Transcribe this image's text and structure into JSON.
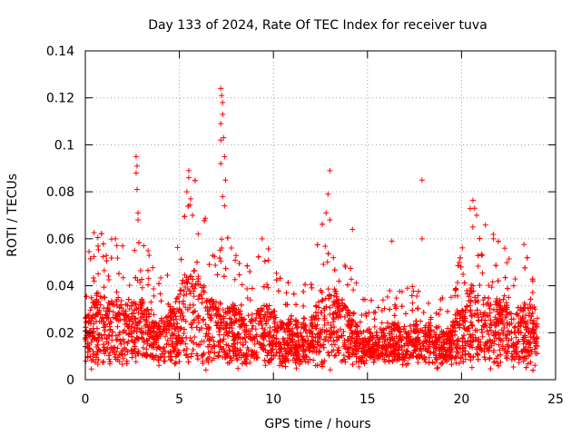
{
  "chart_data": {
    "type": "scatter",
    "title": "Day 133 of 2024, Rate Of TEC Index for receiver tuva",
    "xlabel": "GPS time / hours",
    "ylabel": "ROTI / TECUs",
    "xlim": [
      0,
      25
    ],
    "ylim": [
      0,
      0.14
    ],
    "x_ticks": [
      "0",
      "5",
      "10",
      "15",
      "20",
      "25"
    ],
    "y_ticks": [
      "0",
      "0.02",
      "0.04",
      "0.06",
      "0.08",
      "0.1",
      "0.12",
      "0.14"
    ],
    "x_tick_values": [
      0,
      5,
      10,
      15,
      20,
      25
    ],
    "y_tick_values": [
      0,
      0.02,
      0.04,
      0.06,
      0.08,
      0.1,
      0.12,
      0.14
    ],
    "grid": true,
    "marker": "+",
    "color": "#ff0000",
    "series": [
      {
        "name": "ROTI",
        "notable_points": [
          {
            "x": 2.7,
            "y": 0.095
          },
          {
            "x": 2.75,
            "y": 0.091
          },
          {
            "x": 2.7,
            "y": 0.088
          },
          {
            "x": 2.75,
            "y": 0.081
          },
          {
            "x": 2.8,
            "y": 0.071
          },
          {
            "x": 2.8,
            "y": 0.068
          },
          {
            "x": 1.6,
            "y": 0.06
          },
          {
            "x": 5.4,
            "y": 0.08
          },
          {
            "x": 5.5,
            "y": 0.089
          },
          {
            "x": 5.5,
            "y": 0.086
          },
          {
            "x": 5.6,
            "y": 0.077
          },
          {
            "x": 5.7,
            "y": 0.07
          },
          {
            "x": 7.2,
            "y": 0.124
          },
          {
            "x": 7.25,
            "y": 0.121
          },
          {
            "x": 7.3,
            "y": 0.118
          },
          {
            "x": 7.3,
            "y": 0.113
          },
          {
            "x": 7.2,
            "y": 0.109
          },
          {
            "x": 7.35,
            "y": 0.103
          },
          {
            "x": 7.2,
            "y": 0.102
          },
          {
            "x": 7.4,
            "y": 0.095
          },
          {
            "x": 7.2,
            "y": 0.092
          },
          {
            "x": 7.45,
            "y": 0.085
          },
          {
            "x": 7.3,
            "y": 0.078
          },
          {
            "x": 7.4,
            "y": 0.074
          },
          {
            "x": 9.4,
            "y": 0.06
          },
          {
            "x": 13.0,
            "y": 0.089
          },
          {
            "x": 12.9,
            "y": 0.079
          },
          {
            "x": 12.8,
            "y": 0.071
          },
          {
            "x": 13.0,
            "y": 0.068
          },
          {
            "x": 14.2,
            "y": 0.064
          },
          {
            "x": 16.3,
            "y": 0.059
          },
          {
            "x": 17.9,
            "y": 0.085
          },
          {
            "x": 17.9,
            "y": 0.06
          },
          {
            "x": 20.7,
            "y": 0.073
          },
          {
            "x": 20.8,
            "y": 0.07
          },
          {
            "x": 20.6,
            "y": 0.065
          },
          {
            "x": 21.7,
            "y": 0.06
          },
          {
            "x": 22.3,
            "y": 0.056
          }
        ]
      }
    ]
  }
}
